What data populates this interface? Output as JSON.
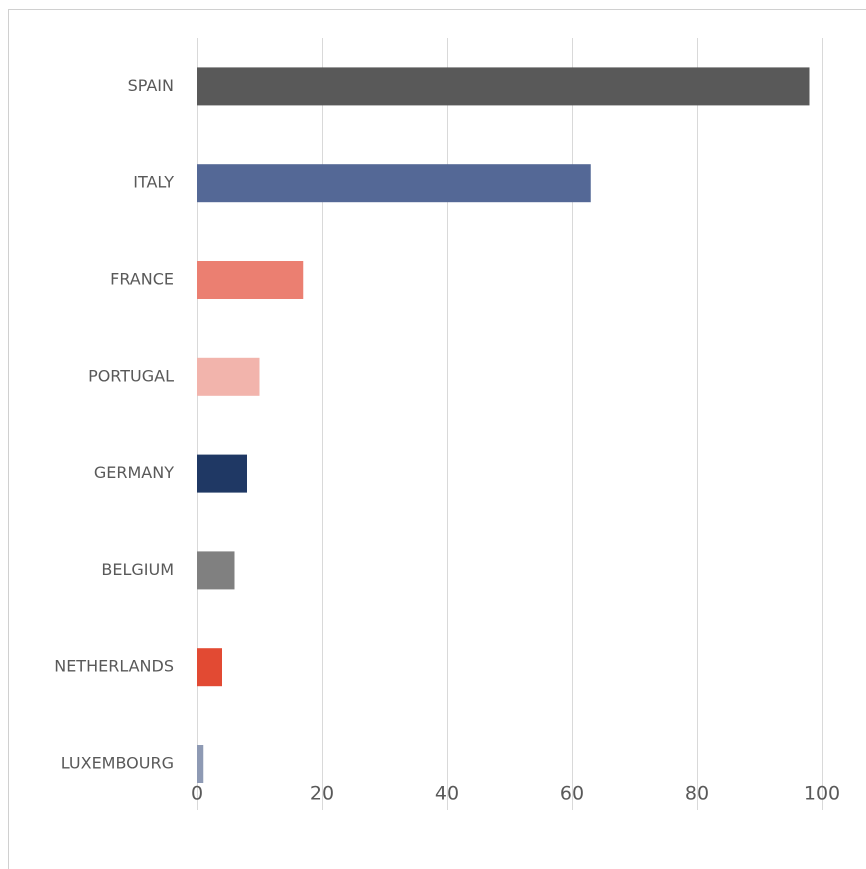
{
  "chart_data": {
    "type": "bar",
    "orientation": "horizontal",
    "categories": [
      "SPAIN",
      "ITALY",
      "FRANCE",
      "PORTUGAL",
      "GERMANY",
      "BELGIUM",
      "NETHERLANDS",
      "LUXEMBOURG"
    ],
    "values": [
      98,
      63,
      17,
      10,
      8,
      6,
      4,
      1
    ],
    "colors": [
      "#595959",
      "#546896",
      "#eb7f71",
      "#f2b4ac",
      "#1f3864",
      "#808080",
      "#e24a33",
      "#8e9ab4"
    ],
    "xlim": [
      0,
      100
    ],
    "xticks": [
      0,
      20,
      40,
      60,
      80,
      100
    ],
    "grid": true,
    "legend": false,
    "title": "",
    "xlabel": "",
    "ylabel": ""
  }
}
